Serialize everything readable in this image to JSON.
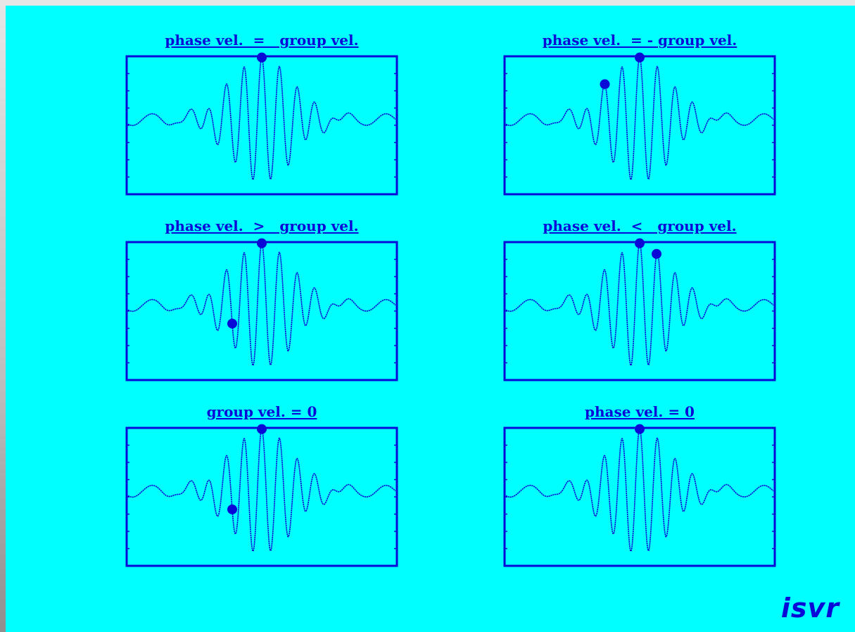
{
  "colors": {
    "background": "#00ffff",
    "ink": "#0a0ad8"
  },
  "brand": {
    "text": "isvr"
  },
  "panels": [
    {
      "title": "phase vel.  =   group vel.",
      "dots": [
        0
      ]
    },
    {
      "title": "phase vel.  = - group vel.",
      "dots": [
        0,
        -3.3
      ]
    },
    {
      "title": "phase vel.  >   group vel.",
      "dots": [
        0,
        -2.8
      ]
    },
    {
      "title": "phase vel.  <   group vel.",
      "dots": [
        0,
        1.6
      ]
    },
    {
      "title": "group vel. = 0",
      "dots": [
        0,
        -2.8
      ]
    },
    {
      "title": "phase vel. = 0",
      "dots": [
        0
      ]
    }
  ]
}
